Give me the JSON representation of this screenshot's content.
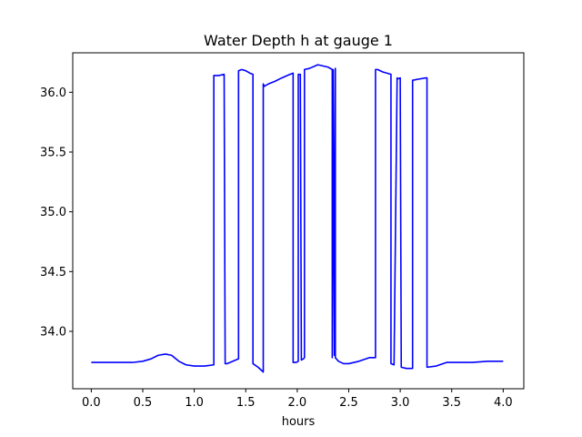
{
  "chart_data": {
    "type": "line",
    "title": "Water Depth h at gauge 1",
    "xlabel": "hours",
    "ylabel": "",
    "xlim": [
      -0.18,
      4.2
    ],
    "ylim": [
      33.52,
      36.33
    ],
    "xticks": [
      0.0,
      0.5,
      1.0,
      1.5,
      2.0,
      2.5,
      3.0,
      3.5,
      4.0
    ],
    "xtick_labels": [
      "0.0",
      "0.5",
      "1.0",
      "1.5",
      "2.0",
      "2.5",
      "3.0",
      "3.5",
      "4.0"
    ],
    "yticks": [
      34.0,
      34.5,
      35.0,
      35.5,
      36.0
    ],
    "ytick_labels": [
      "34.0",
      "34.5",
      "35.0",
      "35.5",
      "36.0"
    ],
    "grid": false,
    "legend": "none",
    "series_color": "#0000ff",
    "series": [
      {
        "x": [
          0.0,
          0.2,
          0.4,
          0.5,
          0.58,
          0.65,
          0.72,
          0.78,
          0.85,
          0.92,
          1.0,
          1.1,
          1.19,
          1.19,
          1.24,
          1.29,
          1.3,
          1.32,
          1.43,
          1.43,
          1.46,
          1.5,
          1.54,
          1.57,
          1.57,
          1.62,
          1.67,
          1.67,
          1.68,
          1.72,
          1.78,
          1.85,
          1.93,
          1.96,
          1.96,
          1.99,
          2.01,
          2.01,
          2.03,
          2.04,
          2.06,
          2.07,
          2.07,
          2.12,
          2.2,
          2.3,
          2.34,
          2.34,
          2.35,
          2.36,
          2.37,
          2.37,
          2.4,
          2.45,
          2.5,
          2.6,
          2.7,
          2.76,
          2.76,
          2.78,
          2.83,
          2.91,
          2.91,
          2.94,
          2.97,
          2.97,
          3.0,
          3.01,
          3.01,
          3.06,
          3.12,
          3.12,
          3.18,
          3.25,
          3.26,
          3.26,
          3.35,
          3.45,
          3.55,
          3.7,
          3.85,
          4.0
        ],
        "y": [
          33.74,
          33.74,
          33.74,
          33.75,
          33.77,
          33.8,
          33.81,
          33.8,
          33.75,
          33.72,
          33.71,
          33.71,
          33.72,
          36.14,
          36.14,
          36.15,
          33.73,
          33.73,
          33.77,
          36.18,
          36.19,
          36.18,
          36.16,
          36.15,
          33.73,
          33.7,
          33.66,
          36.07,
          36.05,
          36.07,
          36.09,
          36.12,
          36.15,
          36.16,
          33.74,
          33.74,
          33.75,
          36.15,
          36.15,
          33.76,
          33.77,
          33.78,
          36.19,
          36.2,
          36.23,
          36.21,
          36.19,
          33.78,
          36.19,
          33.8,
          36.2,
          33.78,
          33.75,
          33.73,
          33.73,
          33.75,
          33.78,
          33.78,
          36.19,
          36.19,
          36.17,
          36.15,
          33.73,
          33.72,
          36.12,
          36.11,
          36.12,
          33.7,
          33.7,
          33.69,
          33.69,
          36.1,
          36.11,
          36.12,
          36.12,
          33.7,
          33.71,
          33.74,
          33.74,
          33.74,
          33.75,
          33.75
        ]
      }
    ]
  }
}
